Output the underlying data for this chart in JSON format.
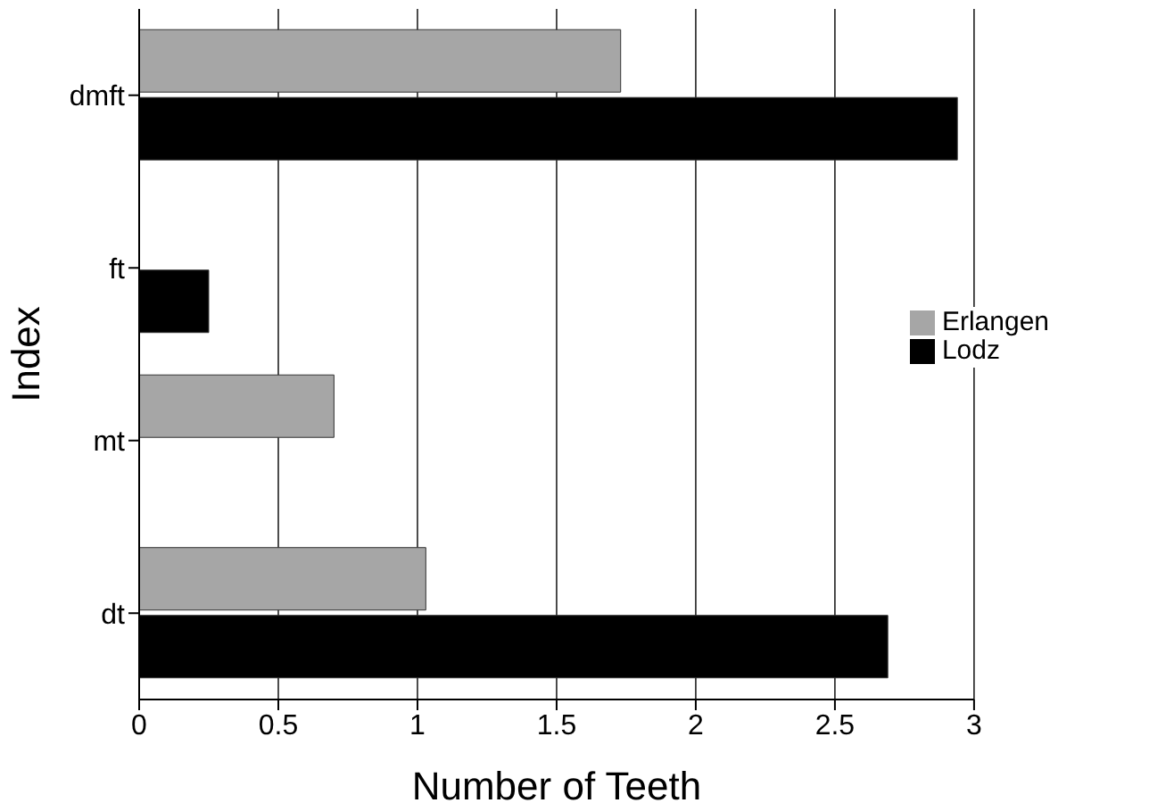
{
  "chart_data": {
    "type": "bar",
    "orientation": "horizontal",
    "xlabel": "Number of Teeth",
    "ylabel": "Index",
    "categories": [
      "dmft",
      "ft",
      "mt",
      "dt"
    ],
    "series": [
      {
        "name": "Erlangen",
        "color": "#a6a6a6",
        "values": [
          1.73,
          null,
          0.7,
          1.03
        ]
      },
      {
        "name": "Lodz",
        "color": "#000000",
        "values": [
          2.94,
          0.25,
          null,
          2.69
        ]
      }
    ],
    "xlim": [
      0,
      3
    ],
    "xticks": [
      0,
      0.5,
      1,
      1.5,
      2,
      2.5,
      3
    ],
    "grid": "x",
    "legend": "right"
  }
}
